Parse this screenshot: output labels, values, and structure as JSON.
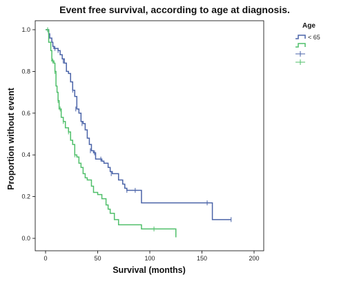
{
  "chart_data": {
    "type": "line",
    "step": true,
    "title": "Event free survival, according to age at diagnosis.",
    "xlabel": "Survival (months)",
    "ylabel": "Proportion without event",
    "xlim": [
      0,
      200
    ],
    "ylim": [
      0,
      1.0
    ],
    "x_ticks": [
      0,
      50,
      100,
      150,
      200
    ],
    "y_ticks": [
      0.0,
      0.2,
      0.4,
      0.6,
      0.8,
      1.0
    ],
    "x_tick_labels": [
      "0",
      "50",
      "100",
      "150",
      "200"
    ],
    "y_tick_labels": [
      "0.0",
      "0.2",
      "0.4",
      "0.6",
      "0.8",
      "1.0"
    ],
    "grid": false,
    "legend": {
      "title": "Age",
      "placement": "right",
      "entries": [
        "< 65",
        "",
        "",
        ""
      ]
    },
    "series": [
      {
        "name": "< 65",
        "color": "#4a63a8",
        "x": [
          0,
          3,
          4,
          6,
          7,
          8,
          10,
          12,
          14,
          16,
          18,
          20,
          22,
          24,
          26,
          28,
          30,
          32,
          34,
          36,
          38,
          40,
          42,
          44,
          46,
          48,
          52,
          54,
          56,
          60,
          62,
          64,
          66,
          70,
          74,
          76,
          78,
          86,
          92,
          158,
          160,
          178
        ],
        "y": [
          1.0,
          0.98,
          0.96,
          0.94,
          0.92,
          0.91,
          0.91,
          0.9,
          0.88,
          0.86,
          0.84,
          0.8,
          0.79,
          0.75,
          0.71,
          0.68,
          0.62,
          0.6,
          0.56,
          0.55,
          0.52,
          0.48,
          0.45,
          0.42,
          0.41,
          0.38,
          0.38,
          0.37,
          0.36,
          0.34,
          0.32,
          0.31,
          0.31,
          0.28,
          0.26,
          0.24,
          0.23,
          0.23,
          0.17,
          0.17,
          0.09,
          0.09
        ],
        "censored_x": [
          2,
          9,
          12,
          17,
          26,
          29,
          35,
          43,
          47,
          53,
          63,
          78,
          86,
          155,
          178
        ],
        "censored_y": [
          1.0,
          0.91,
          0.9,
          0.85,
          0.71,
          0.62,
          0.55,
          0.42,
          0.41,
          0.38,
          0.31,
          0.23,
          0.23,
          0.17,
          0.09
        ]
      },
      {
        "name": "",
        "color": "#4fbf6a",
        "x": [
          0,
          3,
          5,
          6,
          8,
          9,
          10,
          11,
          12,
          13,
          15,
          17,
          19,
          22,
          24,
          26,
          28,
          30,
          32,
          34,
          36,
          38,
          40,
          44,
          46,
          50,
          54,
          58,
          60,
          62,
          66,
          70,
          92,
          125,
          125
        ],
        "y": [
          1.0,
          0.94,
          0.9,
          0.85,
          0.84,
          0.8,
          0.73,
          0.7,
          0.66,
          0.62,
          0.58,
          0.56,
          0.53,
          0.51,
          0.47,
          0.45,
          0.4,
          0.39,
          0.36,
          0.34,
          0.31,
          0.29,
          0.28,
          0.25,
          0.22,
          0.21,
          0.19,
          0.16,
          0.14,
          0.12,
          0.09,
          0.065,
          0.045,
          0.045,
          0.005
        ],
        "censored_x": [
          2,
          7,
          9,
          12,
          14,
          17,
          22,
          28,
          60,
          104
        ],
        "censored_y": [
          1.0,
          0.85,
          0.8,
          0.66,
          0.62,
          0.56,
          0.51,
          0.4,
          0.15,
          0.045
        ]
      }
    ]
  }
}
